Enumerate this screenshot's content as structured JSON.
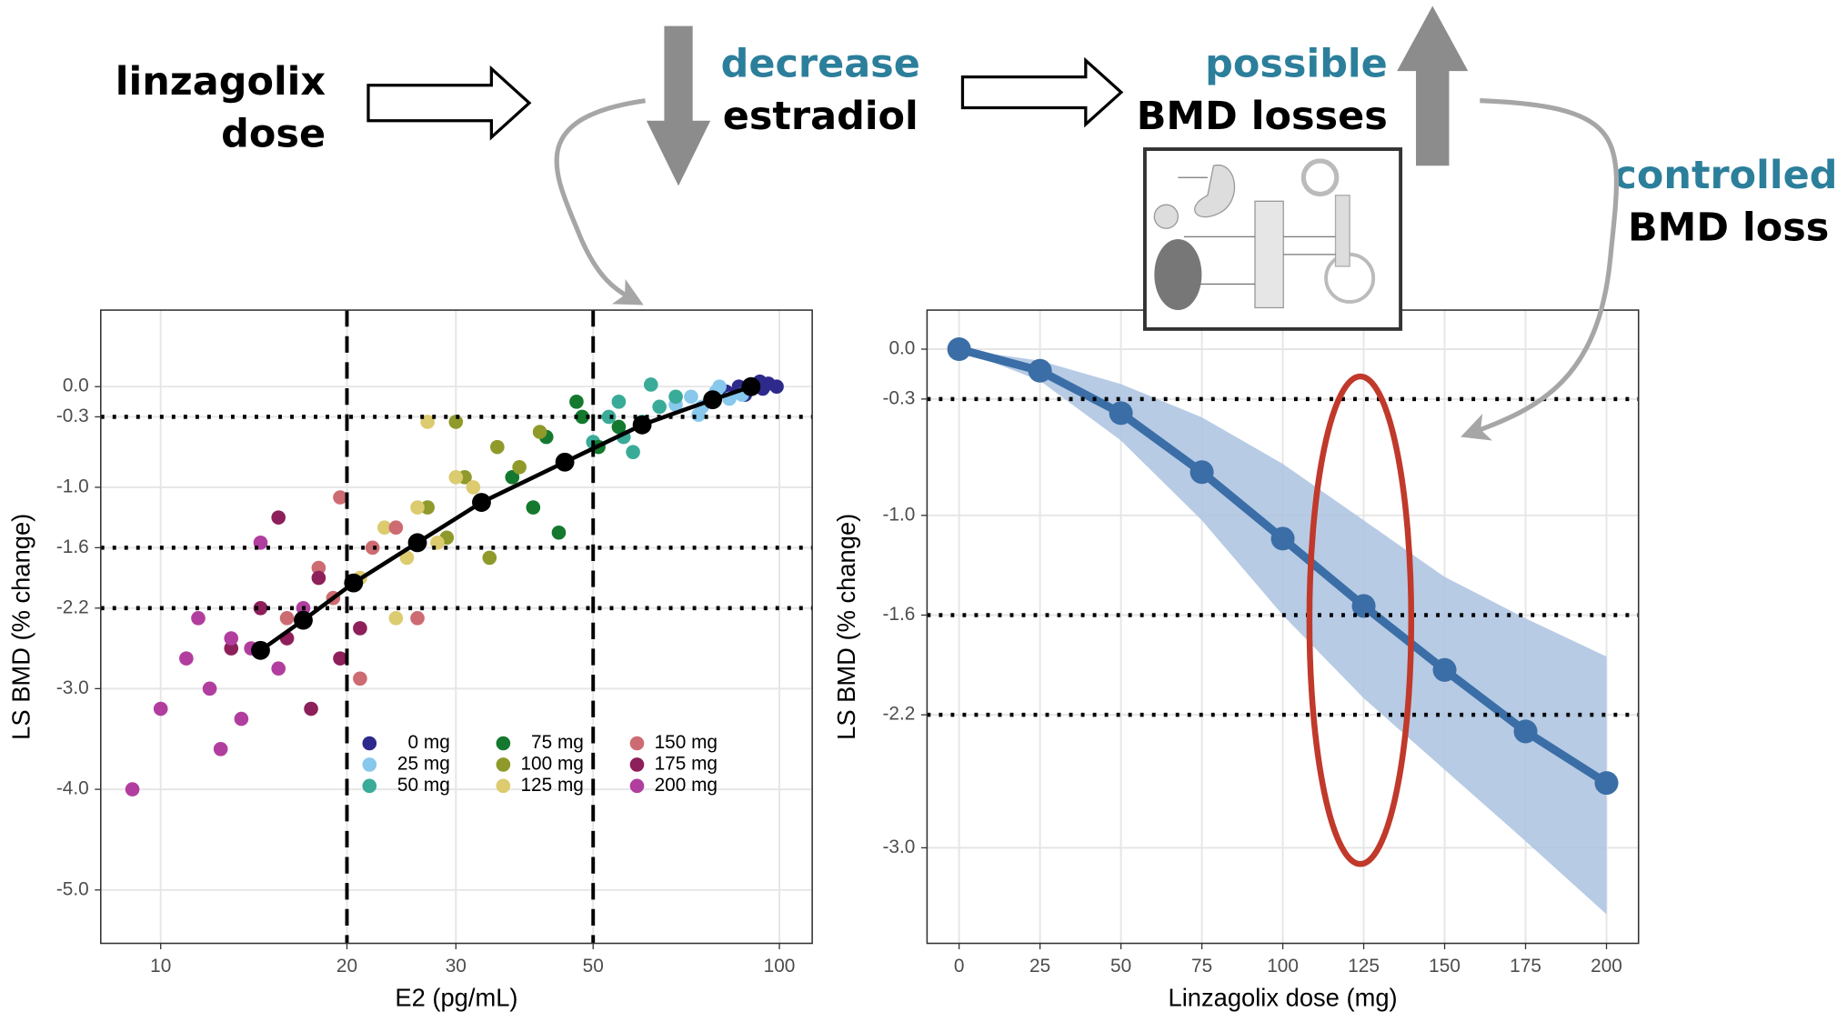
{
  "annotations": {
    "dose_line1": "linzagolix",
    "dose_line2": "dose",
    "decrease": "decrease",
    "estradiol": "estradiol",
    "possible": "possible",
    "bmd_losses": "BMD losses",
    "controlled": "controlled",
    "bmd_loss": "BMD loss"
  },
  "chart_data": [
    {
      "type": "scatter",
      "xlabel": "E2 (pg/mL)",
      "ylabel": "LS BMD (% change)",
      "xscale": "log",
      "xlim": [
        8,
        113
      ],
      "ylim": [
        -5.53,
        0.76
      ],
      "xticks": [
        10,
        20,
        30,
        50,
        100
      ],
      "yticks": [
        {
          "value": 0,
          "label": "0.0"
        },
        {
          "value": -0.3,
          "label": "-0.3"
        },
        {
          "value": -1,
          "label": "-1.0"
        },
        {
          "value": -1.6,
          "label": "-1.6"
        },
        {
          "value": -2.2,
          "label": "-2.2"
        },
        {
          "value": -3,
          "label": "-3.0"
        },
        {
          "value": -4,
          "label": "-4.0"
        },
        {
          "value": -5,
          "label": "-5.0"
        }
      ],
      "grid": true,
      "hlines": [
        -0.3,
        -1.6,
        -2.2
      ],
      "vlines": [
        20,
        50
      ],
      "legend": "bottom-right",
      "series": [
        {
          "name": "0 mg",
          "color": "#2e2a8c",
          "x": [
            82,
            86,
            90,
            93,
            96,
            99,
            88,
            94
          ],
          "y": [
            -0.05,
            0.0,
            0.02,
            0.05,
            0.03,
            0.0,
            -0.08,
            -0.02
          ]
        },
        {
          "name": "25 mg",
          "color": "#87c8ec",
          "x": [
            68,
            72,
            75,
            79,
            83,
            87,
            74,
            80
          ],
          "y": [
            -0.18,
            -0.1,
            -0.2,
            -0.05,
            -0.12,
            -0.08,
            -0.28,
            0.0
          ]
        },
        {
          "name": "50 mg",
          "color": "#3aab98",
          "x": [
            50,
            53,
            56,
            60,
            64,
            68,
            58,
            62,
            55
          ],
          "y": [
            -0.55,
            -0.3,
            -0.5,
            -0.35,
            -0.2,
            -0.1,
            -0.65,
            0.02,
            -0.15
          ]
        },
        {
          "name": "75 mg",
          "color": "#14792f",
          "x": [
            37,
            40,
            42,
            45,
            48,
            51,
            55,
            44,
            47
          ],
          "y": [
            -0.9,
            -1.2,
            -0.5,
            -0.75,
            -0.3,
            -0.6,
            -0.4,
            -1.45,
            -0.15
          ]
        },
        {
          "name": "100 mg",
          "color": "#8f9a2b",
          "x": [
            27,
            29,
            31,
            33,
            35,
            38,
            41,
            34,
            30
          ],
          "y": [
            -1.2,
            -1.5,
            -0.9,
            -1.15,
            -0.6,
            -0.8,
            -0.45,
            -1.7,
            -0.35
          ]
        },
        {
          "name": "125 mg",
          "color": "#dccb6f",
          "x": [
            21,
            23,
            25,
            26,
            28,
            30,
            32,
            24,
            27
          ],
          "y": [
            -1.9,
            -1.4,
            -1.7,
            -1.2,
            -1.55,
            -0.9,
            -1.0,
            -2.3,
            -0.35
          ]
        },
        {
          "name": "150 mg",
          "color": "#cd6b72",
          "x": [
            16,
            18,
            19,
            20.5,
            22,
            24,
            26,
            21,
            19.5
          ],
          "y": [
            -2.3,
            -1.8,
            -2.1,
            -1.95,
            -1.6,
            -1.4,
            -2.3,
            -2.9,
            -1.1
          ]
        },
        {
          "name": "175 mg",
          "color": "#8d1f5b",
          "x": [
            13,
            14.5,
            16,
            17,
            18,
            19.5,
            21,
            17.5,
            15.5
          ],
          "y": [
            -2.6,
            -2.2,
            -2.5,
            -2.3,
            -1.9,
            -2.7,
            -2.4,
            -3.2,
            -1.3
          ]
        },
        {
          "name": "200 mg",
          "color": "#b13e9e",
          "x": [
            9,
            10,
            11,
            12,
            13,
            14,
            15.5,
            17,
            12.5,
            14.5,
            11.5,
            13.5
          ],
          "y": [
            -4.0,
            -3.2,
            -2.7,
            -3.0,
            -2.5,
            -2.6,
            -2.8,
            -2.2,
            -3.6,
            -1.55,
            -2.3,
            -3.3
          ]
        }
      ],
      "median": {
        "color": "#000000",
        "x": [
          14.5,
          17,
          20.5,
          26,
          33,
          45,
          60,
          78,
          90
        ],
        "y": [
          -2.62,
          -2.32,
          -1.95,
          -1.55,
          -1.15,
          -0.75,
          -0.38,
          -0.13,
          0.0
        ]
      }
    },
    {
      "type": "line",
      "xlabel": "Linzagolix dose (mg)",
      "ylabel": "LS BMD (% change)",
      "xlim": [
        -9.9,
        209.9
      ],
      "ylim": [
        -3.575,
        0.235
      ],
      "xticks": [
        0,
        25,
        50,
        75,
        100,
        125,
        150,
        175,
        200
      ],
      "yticks": [
        {
          "value": 0,
          "label": "0.0"
        },
        {
          "value": -0.3,
          "label": "-0.3"
        },
        {
          "value": -1,
          "label": "-1.0"
        },
        {
          "value": -1.6,
          "label": "-1.6"
        },
        {
          "value": -2.2,
          "label": "-2.2"
        },
        {
          "value": -3,
          "label": "-3.0"
        }
      ],
      "grid": true,
      "hlines": [
        -0.3,
        -1.6,
        -2.2
      ],
      "x": [
        0,
        25,
        50,
        75,
        100,
        125,
        150,
        175,
        200
      ],
      "series": [
        {
          "color": "#3b6ea6",
          "values": [
            0,
            -0.13,
            -0.385,
            -0.74,
            -1.14,
            -1.545,
            -1.93,
            -2.3,
            -2.61
          ]
        }
      ],
      "band": {
        "color": "#aac2e0",
        "upper": [
          0,
          -0.07,
          -0.21,
          -0.41,
          -0.69,
          -1.03,
          -1.37,
          -1.62,
          -1.85
        ],
        "lower": [
          0,
          -0.19,
          -0.55,
          -1.03,
          -1.6,
          -2.1,
          -2.53,
          -2.96,
          -3.4
        ]
      }
    }
  ]
}
